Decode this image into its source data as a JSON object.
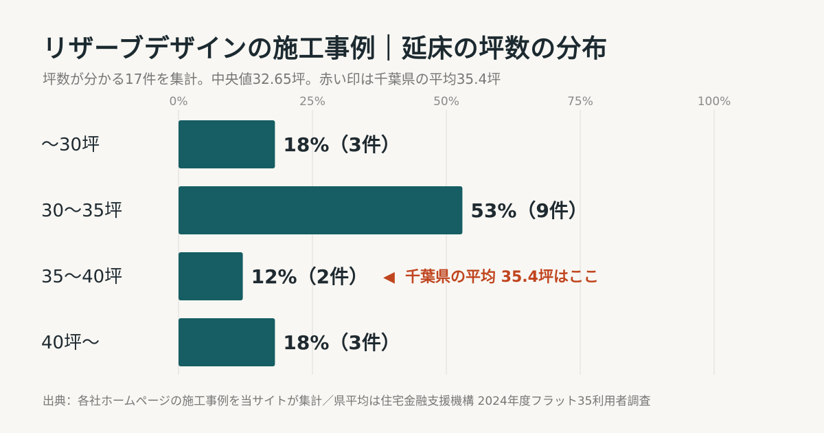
{
  "title": "リザーブデザインの施工事例｜延床の坪数の分布",
  "subtitle": "坪数が分かる17件を集計。中央値32.65坪。赤い印は千葉県の平均35.4坪",
  "footnote": "出典：各社ホームページの施工事例を当サイトが集計／県平均は住宅金融支援機構 2024年度フラット35利用者調査",
  "colors": {
    "bar": "#165e63",
    "annotation": "#c0451f",
    "grid": "#e0ded8",
    "background": "#f8f7f3"
  },
  "chart_data": {
    "type": "bar",
    "orientation": "horizontal",
    "categories": [
      "〜30坪",
      "30〜35坪",
      "35〜40坪",
      "40坪〜"
    ],
    "values": [
      18,
      53,
      12,
      18
    ],
    "counts": [
      3,
      9,
      2,
      3
    ],
    "data_labels": [
      "18%（3件）",
      "53%（9件）",
      "12%（2件）",
      "18%（3件）"
    ],
    "xlim": [
      0,
      100
    ],
    "x_ticks": [
      "0%",
      "25%",
      "50%",
      "75%",
      "100%"
    ],
    "x_tick_values": [
      0,
      25,
      50,
      75,
      100
    ],
    "tick_position": "top",
    "grid": true,
    "annotation": {
      "category_index": 2,
      "marker": "◀",
      "text": "千葉県の平均 35.4坪はここ"
    }
  }
}
